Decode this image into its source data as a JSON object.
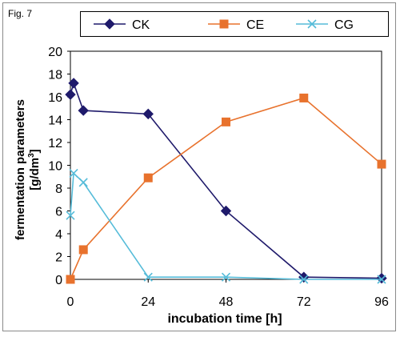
{
  "figure_label": "Fig. 7",
  "colors": {
    "CK": "#1f1a6b",
    "CE": "#e8722d",
    "CG": "#56bcd9"
  },
  "chart_data": {
    "type": "line",
    "title": "",
    "xlabel": "incubation time [h]",
    "ylabel_line1": "fermentation parameters",
    "ylabel_line2_prefix": "[g/dm",
    "ylabel_line2_sup": "3",
    "ylabel_line2_suffix": "]",
    "xlim": [
      0,
      96
    ],
    "ylim": [
      0,
      20
    ],
    "xticks": [
      0,
      24,
      48,
      72,
      96
    ],
    "yticks": [
      0,
      2,
      4,
      6,
      8,
      10,
      12,
      14,
      16,
      18,
      20
    ],
    "legend_position": "top",
    "series": [
      {
        "name": "CK",
        "marker": "diamond",
        "color": "#1f1a6b",
        "x": [
          0,
          1,
          4,
          24,
          48,
          72,
          96
        ],
        "y": [
          16.2,
          17.2,
          14.8,
          14.5,
          6.0,
          0.2,
          0.1
        ]
      },
      {
        "name": "CE",
        "marker": "square",
        "color": "#e8722d",
        "x": [
          0,
          4,
          24,
          48,
          72,
          96
        ],
        "y": [
          0.0,
          2.6,
          8.9,
          13.8,
          15.9,
          10.1
        ]
      },
      {
        "name": "CG",
        "marker": "x",
        "color": "#56bcd9",
        "x": [
          0,
          1,
          4,
          24,
          48,
          72,
          96
        ],
        "y": [
          5.6,
          9.3,
          8.5,
          0.2,
          0.2,
          0.0,
          0.0
        ]
      }
    ]
  }
}
